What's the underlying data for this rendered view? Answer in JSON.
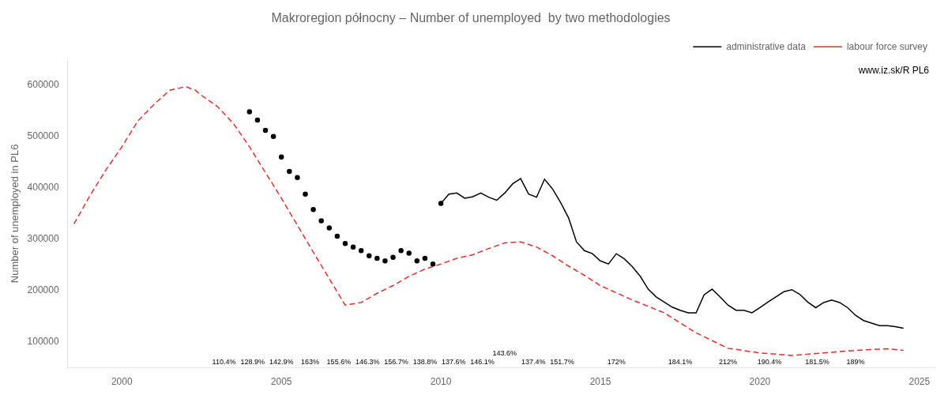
{
  "chart_data": {
    "type": "line",
    "title": "Makroregion północny – Number of unemployed  by two methodologies",
    "y_label": "Number of unemployed in PL6",
    "xlim": [
      1998.3,
      2025.5
    ],
    "ylim": [
      50000,
      650000
    ],
    "xticks": [
      2000,
      2005,
      2010,
      2015,
      2020,
      2025
    ],
    "yticks": [
      100000,
      200000,
      300000,
      400000,
      500000,
      600000
    ],
    "grid": false,
    "legend": "upper right",
    "series": [
      {
        "name": "administrative data",
        "color": "#000000",
        "line_style": "solid",
        "marker": "none",
        "x": [
          2010.0,
          2010.25,
          2010.5,
          2010.75,
          2011.0,
          2011.25,
          2011.5,
          2011.75,
          2012.0,
          2012.25,
          2012.5,
          2012.75,
          2013.0,
          2013.25,
          2013.5,
          2013.75,
          2014.0,
          2014.25,
          2014.5,
          2014.75,
          2015.0,
          2015.25,
          2015.5,
          2015.75,
          2016.0,
          2016.25,
          2016.5,
          2016.75,
          2017.0,
          2017.25,
          2017.5,
          2017.75,
          2018.0,
          2018.25,
          2018.5,
          2018.75,
          2019.0,
          2019.25,
          2019.5,
          2019.75,
          2020.0,
          2020.25,
          2020.5,
          2020.75,
          2021.0,
          2021.25,
          2021.5,
          2021.75,
          2022.0,
          2022.25,
          2022.5,
          2022.75,
          2023.0,
          2023.25,
          2023.5,
          2023.75,
          2024.0,
          2024.25,
          2024.5
        ],
        "values": [
          370000,
          388000,
          390000,
          380000,
          383000,
          390000,
          382000,
          376000,
          390000,
          408000,
          418000,
          388000,
          382000,
          417000,
          398000,
          372000,
          342000,
          295000,
          278000,
          272000,
          258000,
          252000,
          272000,
          262000,
          247000,
          228000,
          203000,
          188000,
          178000,
          168000,
          162000,
          157000,
          157000,
          192000,
          203000,
          188000,
          172000,
          162000,
          162000,
          157000,
          167000,
          178000,
          188000,
          198000,
          202000,
          193000,
          178000,
          167000,
          177000,
          182000,
          177000,
          167000,
          152000,
          142000,
          137000,
          132000,
          132000,
          130000,
          127000
        ]
      },
      {
        "name": "labour force survey",
        "color": "#e03030",
        "line_style": "dashed",
        "marker": "none",
        "x": [
          1998.5,
          1999.0,
          1999.5,
          2000.0,
          2000.5,
          2001.0,
          2001.5,
          2002.0,
          2002.3,
          2002.5,
          2003.0,
          2003.5,
          2004.0,
          2004.5,
          2005.0,
          2006.0,
          2007.0,
          2007.5,
          2008.0,
          2008.5,
          2009.0,
          2009.5,
          2010.0,
          2010.5,
          2011.0,
          2011.5,
          2012.0,
          2012.5,
          2013.0,
          2013.5,
          2014.0,
          2014.5,
          2015.0,
          2016.0,
          2017.0,
          2018.0,
          2019.0,
          2020.0,
          2021.0,
          2022.0,
          2023.0,
          2024.0,
          2024.5
        ],
        "values": [
          330000,
          385000,
          435000,
          480000,
          530000,
          562000,
          590000,
          597000,
          590000,
          580000,
          558000,
          525000,
          480000,
          430000,
          380000,
          275000,
          172000,
          177000,
          195000,
          210000,
          228000,
          242000,
          252000,
          263000,
          270000,
          282000,
          293000,
          295000,
          285000,
          268000,
          248000,
          230000,
          210000,
          182000,
          157000,
          118000,
          88000,
          79000,
          74000,
          79000,
          84000,
          87000,
          84000
        ]
      },
      {
        "color": "#000000",
        "line_style": "none",
        "marker": "dot",
        "x": [
          2004.0,
          2004.25,
          2004.5,
          2004.75,
          2005.0,
          2005.25,
          2005.5,
          2005.75,
          2006.0,
          2006.25,
          2006.5,
          2006.75,
          2007.0,
          2007.25,
          2007.5,
          2007.75,
          2008.0,
          2008.25,
          2008.5,
          2008.75,
          2009.0,
          2009.25,
          2009.5,
          2009.75,
          2010.0
        ],
        "values": [
          548000,
          532000,
          512000,
          500000,
          460000,
          432000,
          420000,
          388000,
          358000,
          336000,
          322000,
          306000,
          292000,
          285000,
          278000,
          268000,
          263000,
          258000,
          265000,
          278000,
          273000,
          258000,
          263000,
          252000,
          370000
        ]
      }
    ],
    "annotations": [
      {
        "x": 2003.2,
        "text": "110.4%"
      },
      {
        "x": 2004.1,
        "text": "128.9%"
      },
      {
        "x": 2005.0,
        "text": "142.9%"
      },
      {
        "x": 2005.9,
        "text": "163%"
      },
      {
        "x": 2006.8,
        "text": "155.6%"
      },
      {
        "x": 2007.7,
        "text": "146.3%"
      },
      {
        "x": 2008.6,
        "text": "156.7%"
      },
      {
        "x": 2009.5,
        "text": "138.8%"
      },
      {
        "x": 2010.4,
        "text": "137.6%"
      },
      {
        "x": 2011.3,
        "text": "146.1%"
      },
      {
        "x": 2012.0,
        "text": "143.6%"
      },
      {
        "x": 2012.9,
        "text": "137.4%"
      },
      {
        "x": 2013.8,
        "text": "151.7%"
      },
      {
        "x": 2015.5,
        "text": "172%"
      },
      {
        "x": 2017.5,
        "text": "184.1%"
      },
      {
        "x": 2019.0,
        "text": "212%"
      },
      {
        "x": 2020.3,
        "text": "190.4%"
      },
      {
        "x": 2021.8,
        "text": "181.5%"
      },
      {
        "x": 2023.0,
        "text": "189%"
      },
      {
        "text": "www.iz.sk/R PL6"
      }
    ]
  }
}
